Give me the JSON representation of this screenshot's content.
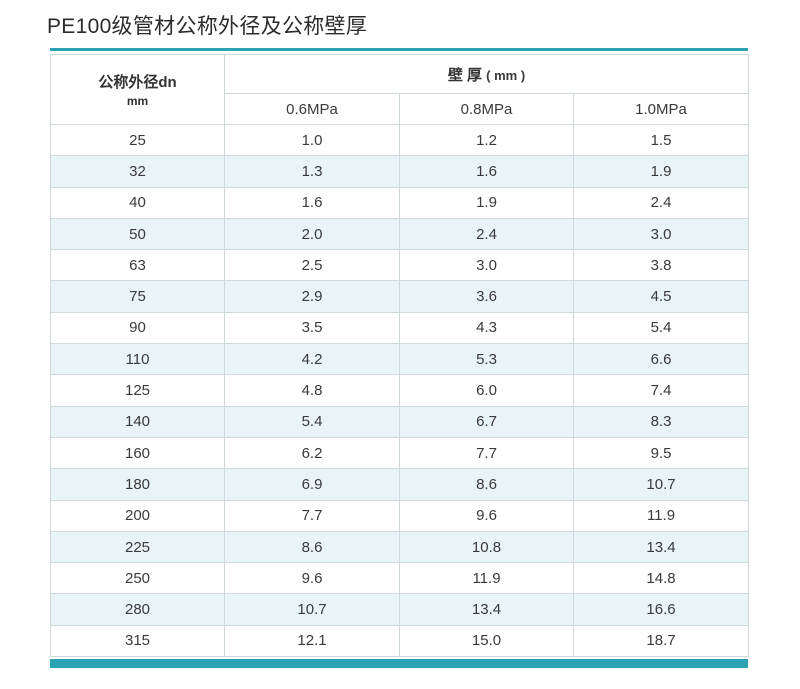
{
  "title": "PE100级管材公称外径及公称壁厚",
  "table": {
    "diameter_header": "公称外径dn",
    "diameter_unit": "mm",
    "wall_header": "壁 厚",
    "wall_unit": "( mm )",
    "pressures": [
      "0.6MPa",
      "0.8MPa",
      "1.0MPa"
    ],
    "rows": [
      [
        "25",
        "1.0",
        "1.2",
        "1.5"
      ],
      [
        "32",
        "1.3",
        "1.6",
        "1.9"
      ],
      [
        "40",
        "1.6",
        "1.9",
        "2.4"
      ],
      [
        "50",
        "2.0",
        "2.4",
        "3.0"
      ],
      [
        "63",
        "2.5",
        "3.0",
        "3.8"
      ],
      [
        "75",
        "2.9",
        "3.6",
        "4.5"
      ],
      [
        "90",
        "3.5",
        "4.3",
        "5.4"
      ],
      [
        "110",
        "4.2",
        "5.3",
        "6.6"
      ],
      [
        "125",
        "4.8",
        "6.0",
        "7.4"
      ],
      [
        "140",
        "5.4",
        "6.7",
        "8.3"
      ],
      [
        "160",
        "6.2",
        "7.7",
        "9.5"
      ],
      [
        "180",
        "6.9",
        "8.6",
        "10.7"
      ],
      [
        "200",
        "7.7",
        "9.6",
        "11.9"
      ],
      [
        "225",
        "8.6",
        "10.8",
        "13.4"
      ],
      [
        "250",
        "9.6",
        "11.9",
        "14.8"
      ],
      [
        "280",
        "10.7",
        "13.4",
        "16.6"
      ],
      [
        "315",
        "12.1",
        "15.0",
        "18.7"
      ]
    ]
  },
  "colors": {
    "accent": "#2ba3b5",
    "stripe": "#e8f4f6",
    "border": "#cfd8dc"
  }
}
